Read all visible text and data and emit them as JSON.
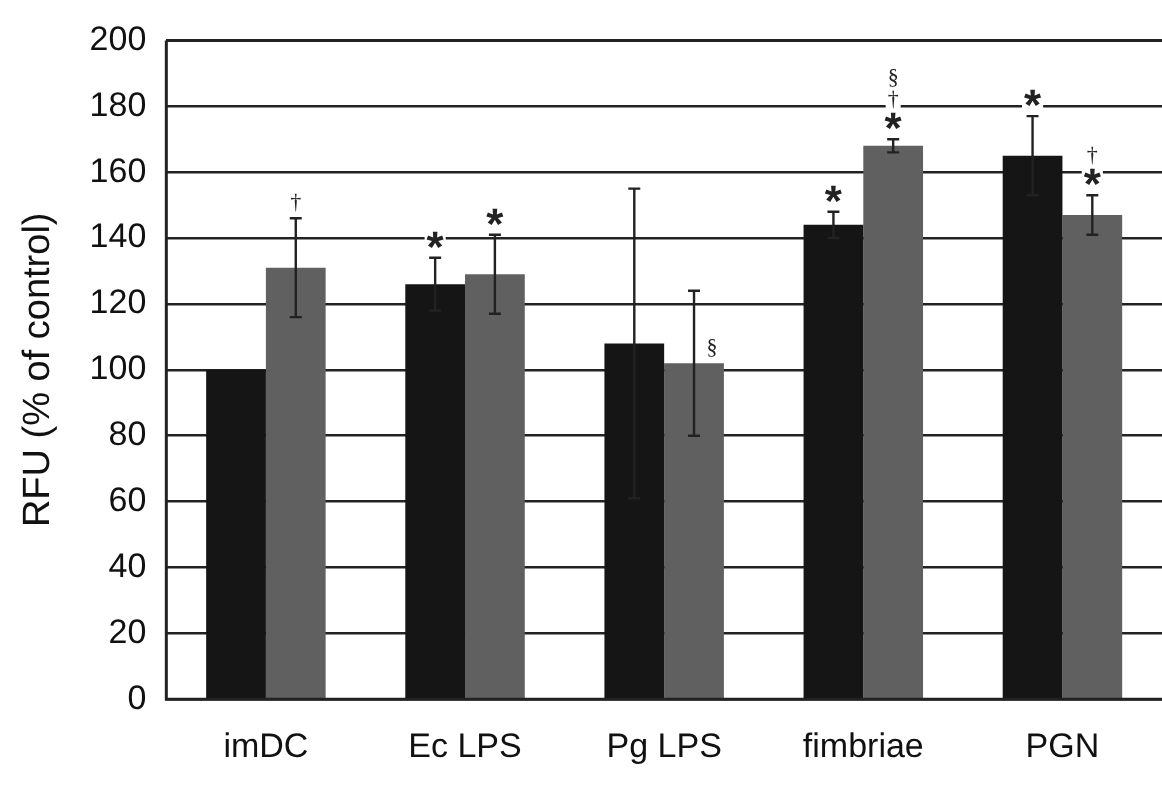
{
  "chart_data": {
    "type": "bar",
    "ylabel": "RFU (% of control)",
    "categories": [
      "imDC",
      "Ec LPS",
      "Pg LPS",
      "fimbriae",
      "PGN"
    ],
    "series": [
      {
        "color": "#151515",
        "values": [
          100,
          126,
          108,
          144,
          165
        ],
        "errors": [
          null,
          8,
          47,
          4,
          12
        ]
      },
      {
        "color": "#606060",
        "values": [
          131,
          129,
          102,
          168,
          147
        ],
        "errors": [
          15,
          12,
          22,
          2,
          6
        ]
      }
    ],
    "ylim": [
      0,
      200
    ],
    "yticks": [
      0,
      20,
      40,
      60,
      80,
      100,
      120,
      140,
      160,
      180,
      200
    ],
    "grid": "y",
    "legend": false,
    "annotations": [
      {
        "text": "†",
        "x": "imDC",
        "y": 131
      },
      {
        "text": "*",
        "x": "Ec LPS",
        "y": 126
      },
      {
        "text": "*",
        "x": "Ec LPS",
        "y": 129
      },
      {
        "text": "§",
        "x": "Pg LPS",
        "y": 102
      },
      {
        "text": "*",
        "x": "fimbriae",
        "y": 144
      },
      {
        "text": "*",
        "x": "fimbriae",
        "y": 168
      },
      {
        "text": "†",
        "x": "fimbriae",
        "y": 168
      },
      {
        "text": "§",
        "x": "fimbriae",
        "y": 168
      },
      {
        "text": "*",
        "x": "PGN",
        "y": 165
      },
      {
        "text": "*",
        "x": "PGN",
        "y": 147
      },
      {
        "text": "†",
        "x": "PGN",
        "y": 147
      }
    ]
  }
}
